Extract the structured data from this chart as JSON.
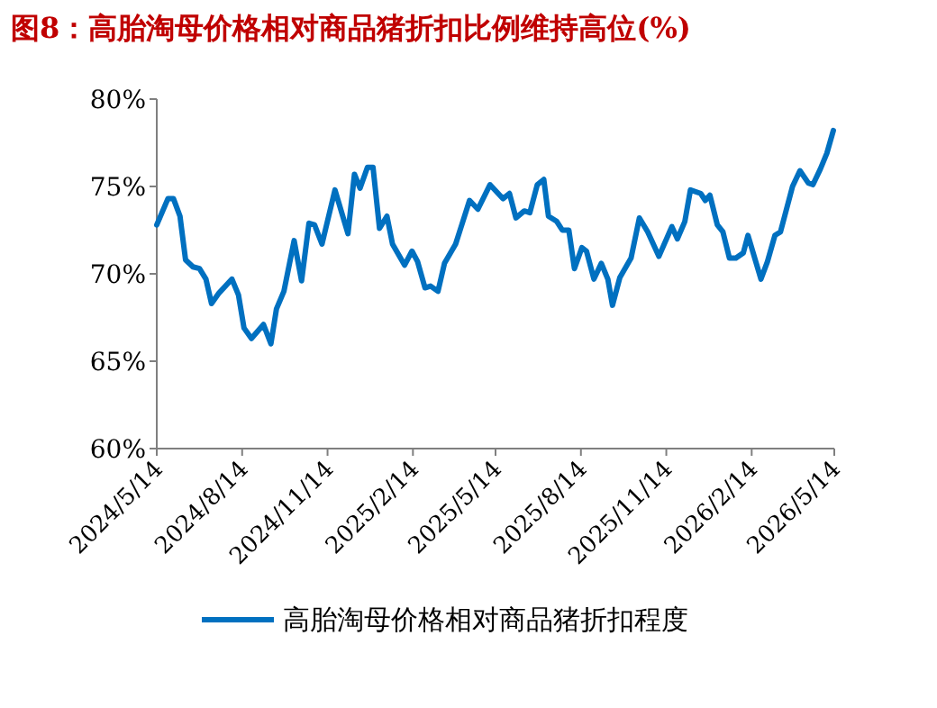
{
  "chart_data": {
    "type": "line",
    "title": "图8：高胎淘母价格相对商品猪折扣比例维持高位(%)",
    "x": [
      "2024-05-14",
      "2024-05-26",
      "2024-06-01",
      "2024-06-08",
      "2024-06-14",
      "2024-06-22",
      "2024-06-29",
      "2024-07-06",
      "2024-07-12",
      "2024-07-20",
      "2024-08-03",
      "2024-08-10",
      "2024-08-16",
      "2024-08-24",
      "2024-09-06",
      "2024-09-14",
      "2024-09-20",
      "2024-09-28",
      "2024-10-09",
      "2024-10-17",
      "2024-10-25",
      "2024-10-31",
      "2024-11-08",
      "2024-11-22",
      "2024-12-06",
      "2024-12-13",
      "2024-12-19",
      "2024-12-27",
      "2025-01-02",
      "2025-01-09",
      "2025-01-17",
      "2025-01-23",
      "2025-02-05",
      "2025-02-13",
      "2025-02-19",
      "2025-02-27",
      "2025-03-05",
      "2025-03-13",
      "2025-03-20",
      "2025-04-01",
      "2025-04-16",
      "2025-04-25",
      "2025-05-08",
      "2025-05-22",
      "2025-05-29",
      "2025-06-05",
      "2025-06-14",
      "2025-06-20",
      "2025-06-28",
      "2025-07-05",
      "2025-07-10",
      "2025-07-19",
      "2025-07-25",
      "2025-08-01",
      "2025-08-07",
      "2025-08-15",
      "2025-08-20",
      "2025-08-28",
      "2025-09-05",
      "2025-09-12",
      "2025-09-17",
      "2025-09-25",
      "2025-10-07",
      "2025-10-16",
      "2025-10-25",
      "2025-11-06",
      "2025-11-20",
      "2025-11-26",
      "2025-12-04",
      "2025-12-10",
      "2025-12-21",
      "2025-12-26",
      "2025-12-31",
      "2026-01-08",
      "2026-01-14",
      "2026-01-21",
      "2026-01-28",
      "2026-02-05",
      "2026-02-10",
      "2026-02-24",
      "2026-03-03",
      "2026-03-11",
      "2026-03-17",
      "2026-03-30",
      "2026-04-07",
      "2026-04-16",
      "2026-04-21",
      "2026-04-29",
      "2026-05-06",
      "2026-05-13"
    ],
    "series": [
      {
        "name": "高胎淘母价格相对商品猪折扣程度",
        "color": "#0070c0",
        "values": [
          72.8,
          74.3,
          74.3,
          73.3,
          70.8,
          70.4,
          70.3,
          69.7,
          68.3,
          68.9,
          69.7,
          68.8,
          66.9,
          66.3,
          67.1,
          66.0,
          68.0,
          69.0,
          71.9,
          69.6,
          72.9,
          72.8,
          71.7,
          74.8,
          72.3,
          75.7,
          74.9,
          76.1,
          76.1,
          72.6,
          73.3,
          71.7,
          70.5,
          71.3,
          70.7,
          69.2,
          69.3,
          69.0,
          70.6,
          71.7,
          74.2,
          73.7,
          75.1,
          74.3,
          74.6,
          73.2,
          73.6,
          73.5,
          75.1,
          75.4,
          73.3,
          73.0,
          72.5,
          72.5,
          70.3,
          71.5,
          71.3,
          69.7,
          70.6,
          69.7,
          68.2,
          69.8,
          70.9,
          73.2,
          72.4,
          71.0,
          72.7,
          72.0,
          73.0,
          74.8,
          74.6,
          74.2,
          74.5,
          72.8,
          72.4,
          70.9,
          70.9,
          71.2,
          72.2,
          69.7,
          70.7,
          72.2,
          72.4,
          75.0,
          75.9,
          75.2,
          75.1,
          76.0,
          76.9,
          78.2
        ]
      }
    ],
    "xlim": [
      "2024-05-14",
      "2026-05-14"
    ],
    "xticks": [
      {
        "value": "2024-05-14",
        "label": "2024/5/14"
      },
      {
        "value": "2024-08-14",
        "label": "2024/8/14"
      },
      {
        "value": "2024-11-14",
        "label": "2024/11/14"
      },
      {
        "value": "2025-02-14",
        "label": "2025/2/14"
      },
      {
        "value": "2025-05-14",
        "label": "2025/5/14"
      },
      {
        "value": "2025-08-14",
        "label": "2025/8/14"
      },
      {
        "value": "2025-11-14",
        "label": "2025/11/14"
      },
      {
        "value": "2026-02-14",
        "label": "2026/2/14"
      },
      {
        "value": "2026-05-14",
        "label": "2026/5/14"
      }
    ],
    "ylim": [
      60,
      80
    ],
    "yticks": [
      {
        "value": 60,
        "label": "60%"
      },
      {
        "value": 65,
        "label": "65%"
      },
      {
        "value": 70,
        "label": "70%"
      },
      {
        "value": 75,
        "label": "75%"
      },
      {
        "value": 80,
        "label": "80%"
      }
    ],
    "grid": false,
    "legend": "bottom",
    "marker": "none",
    "line_style": "solid"
  }
}
